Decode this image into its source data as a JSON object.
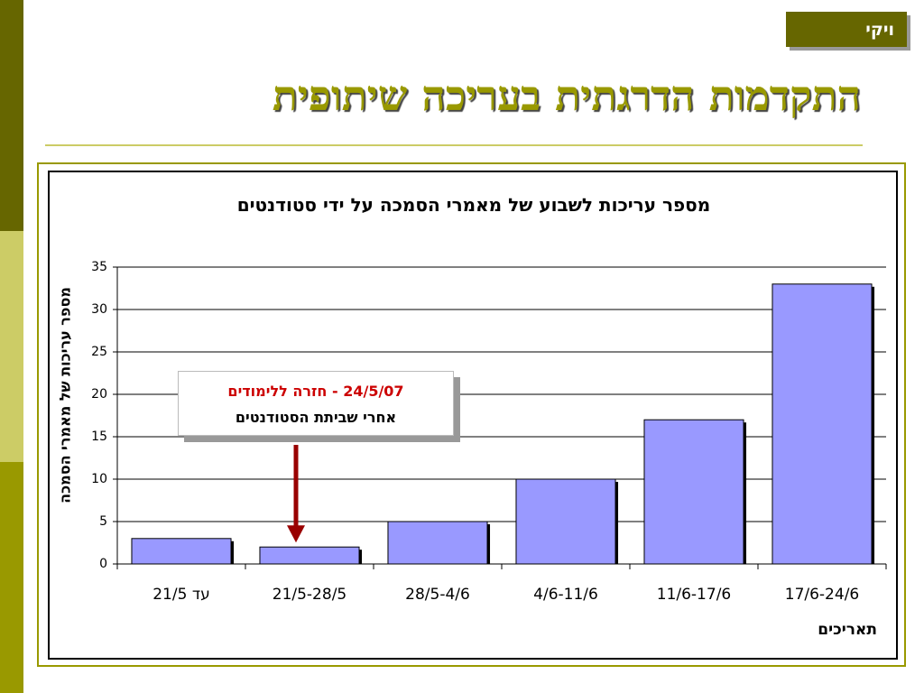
{
  "tag": {
    "label": "ויקי"
  },
  "slide": {
    "title": "התקדמות הדרגתית בעריכה שיתופית"
  },
  "callout": {
    "line1": "24/5/07 - חזרה ללימודים",
    "line2": "אחרי שביתת הסטודנטים"
  },
  "colors": {
    "bar": "#9999FF",
    "accent": "#999900",
    "dark_olive": "#666600",
    "arrow": "#990000"
  },
  "chart_data": {
    "type": "bar",
    "title": "מספר עריכות לשבוע של מאמרי הסמכה על ידי סטודנטים",
    "xlabel": "תאריכים",
    "ylabel": "מספר עריכות של מאמרי הסמכה",
    "categories": [
      "עד 21/5",
      "21/5-28/5",
      "28/5-4/6",
      "4/6-11/6",
      "11/6-17/6",
      "17/6-24/6"
    ],
    "values": [
      3,
      2,
      5,
      10,
      17,
      33
    ],
    "ylim": [
      0,
      35
    ],
    "yticks": [
      0,
      5,
      10,
      15,
      20,
      25,
      30,
      35
    ],
    "grid": true,
    "legend": "none"
  }
}
